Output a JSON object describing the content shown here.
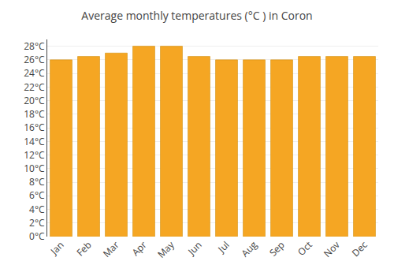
{
  "chart_data": {
    "type": "bar",
    "title": "Average monthly temperatures (°C ) in Coron",
    "categories": [
      "Jan",
      "Feb",
      "Mar",
      "Apr",
      "May",
      "Jun",
      "Jul",
      "Aug",
      "Sep",
      "Oct",
      "Nov",
      "Dec"
    ],
    "values": [
      26,
      26.5,
      27,
      28,
      28,
      26.5,
      26,
      26,
      26,
      26.5,
      26.5,
      26.5
    ],
    "color": "#F5A623",
    "ylim": [
      0,
      29
    ],
    "yticks": [
      {
        "value": 0,
        "label": "0°C"
      },
      {
        "value": 2,
        "label": "2°C"
      },
      {
        "value": 4,
        "label": "4°C"
      },
      {
        "value": 6,
        "label": "6°C"
      },
      {
        "value": 8,
        "label": "8°C"
      },
      {
        "value": 10,
        "label": "10°C"
      },
      {
        "value": 12,
        "label": "12°C"
      },
      {
        "value": 14,
        "label": "14°C"
      },
      {
        "value": 16,
        "label": "16°C"
      },
      {
        "value": 18,
        "label": "18°C"
      },
      {
        "value": 20,
        "label": "20°C"
      },
      {
        "value": 22,
        "label": "22°C"
      },
      {
        "value": 24,
        "label": "24°C"
      },
      {
        "value": 26,
        "label": "26°C"
      },
      {
        "value": 28,
        "label": "28°C"
      }
    ],
    "grid": true
  }
}
